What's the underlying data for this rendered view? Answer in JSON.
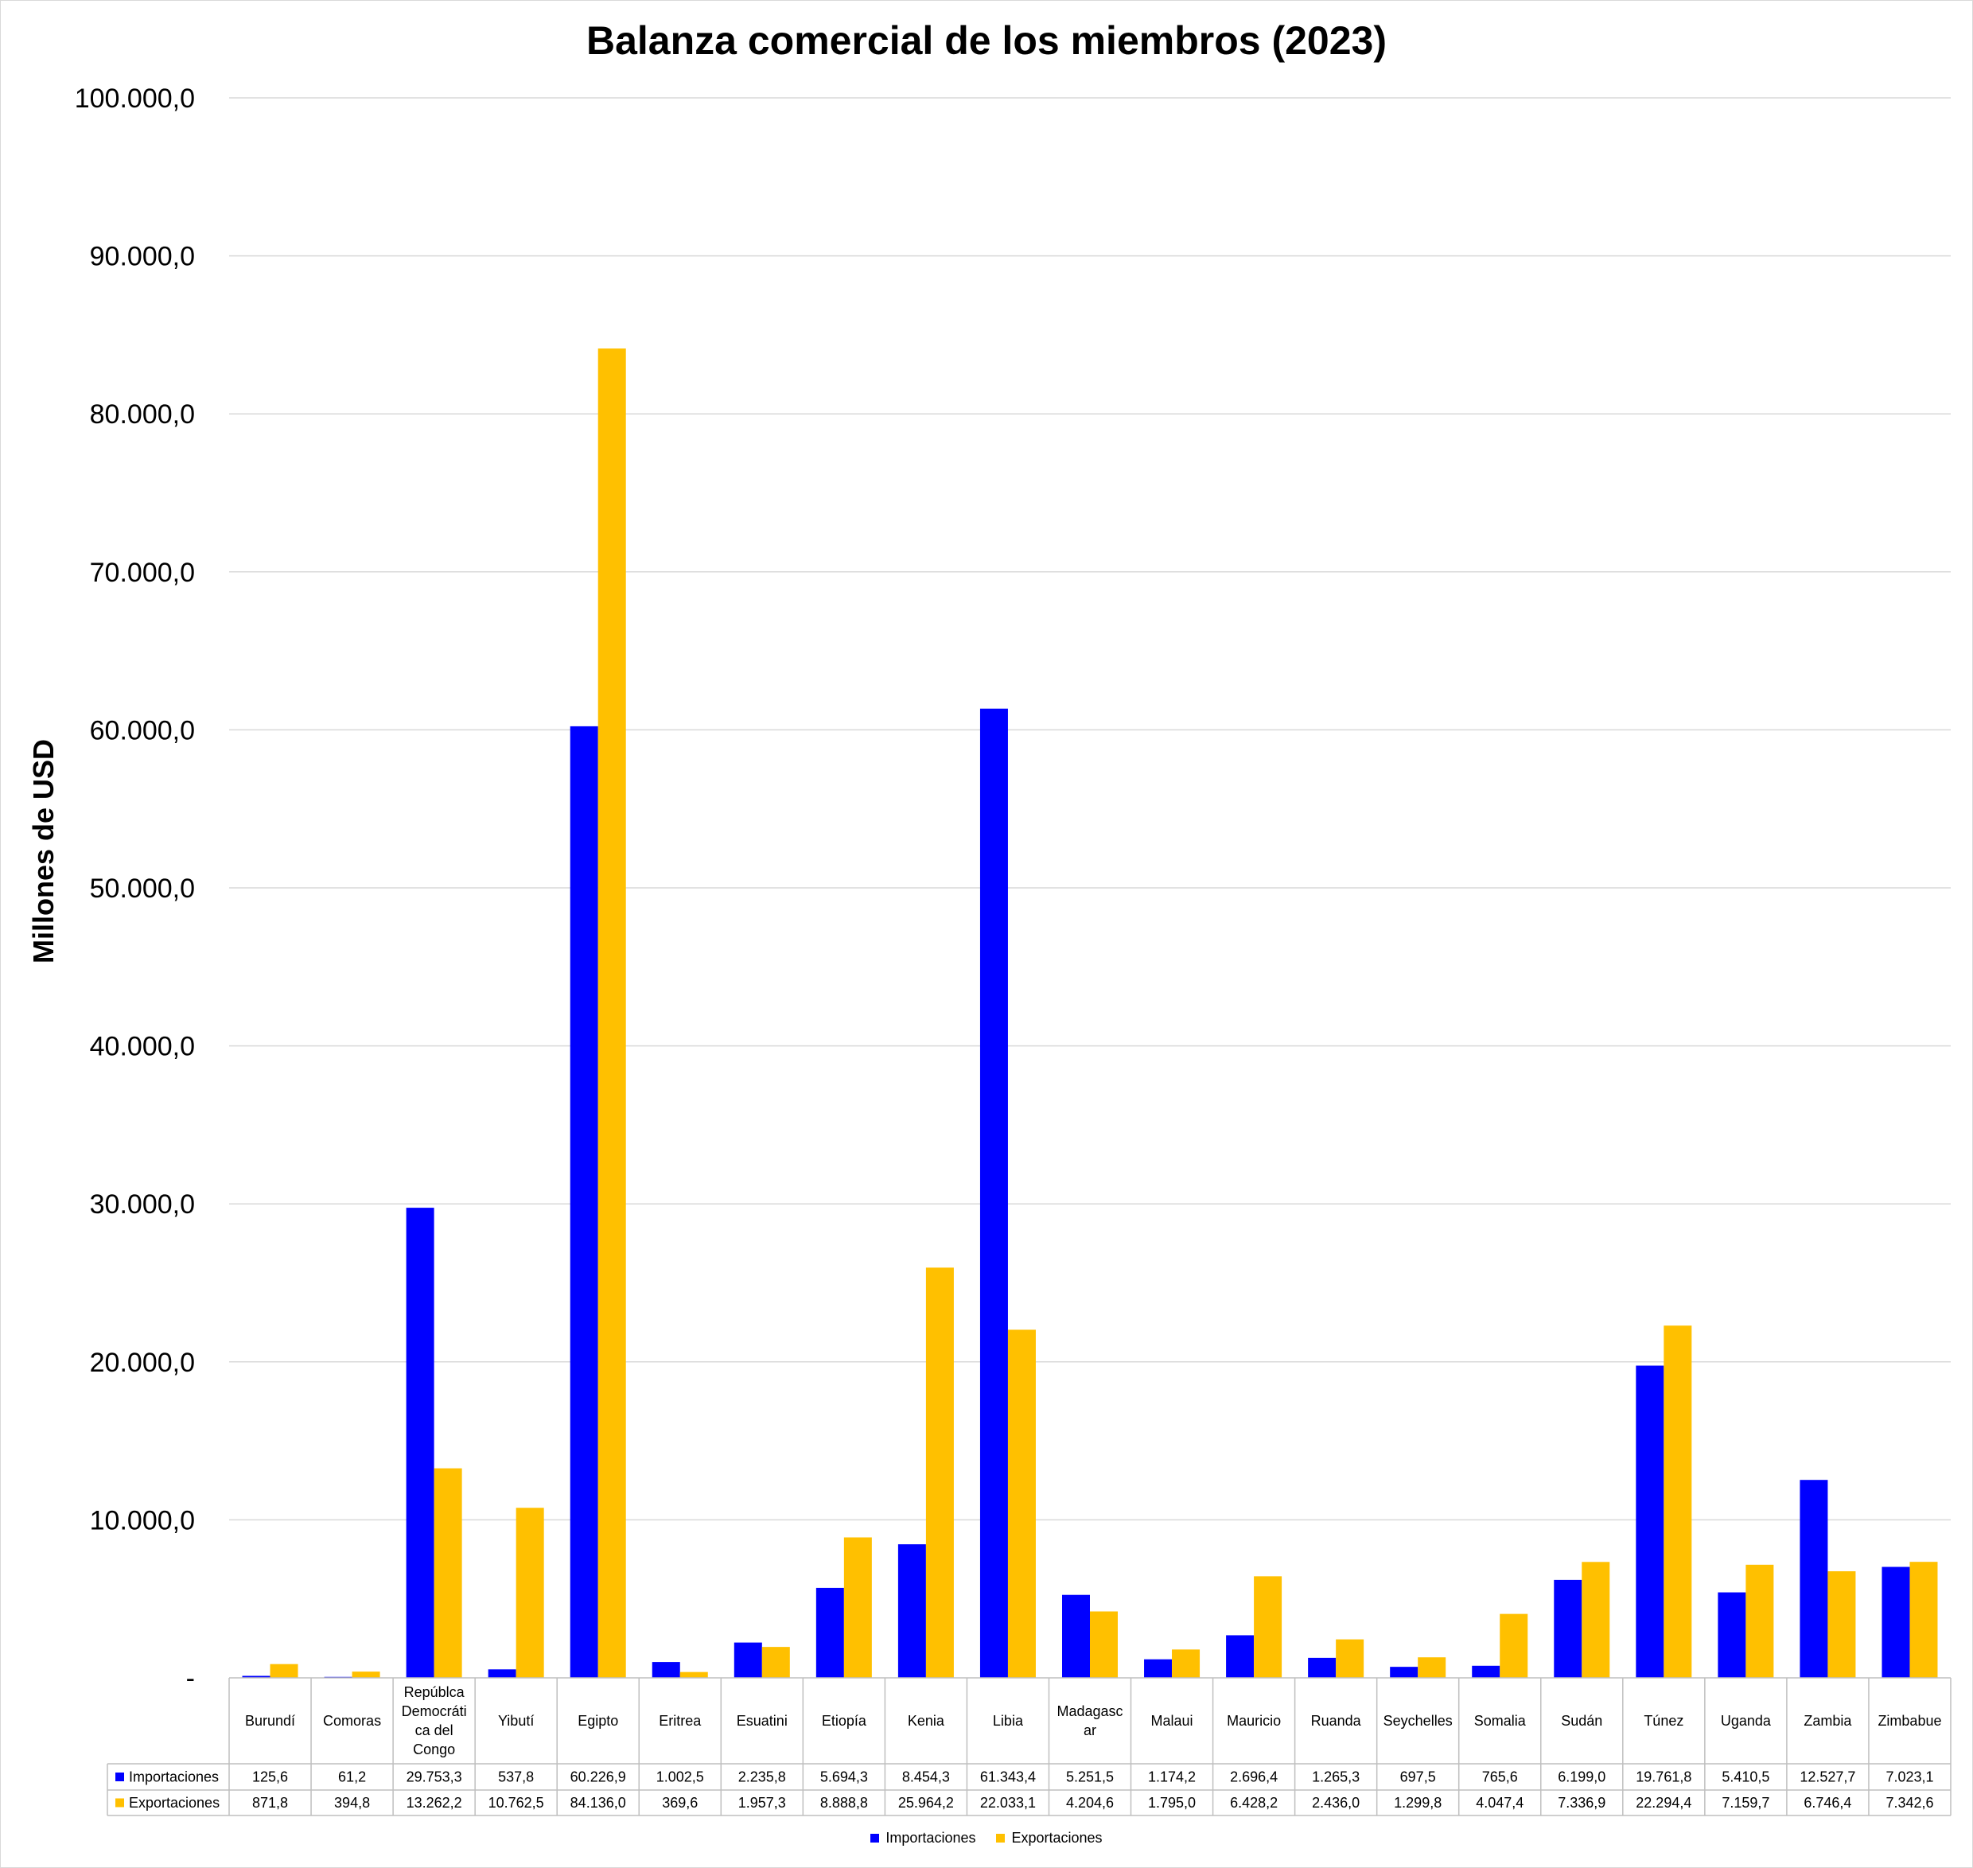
{
  "colors": {
    "imports": "#0000FF",
    "exports": "#FFC000",
    "grid": "#d9d9d9",
    "table_border": "#bfbfbf"
  },
  "chart_data": {
    "type": "bar",
    "title": "Balanza comercial de los miembros (2023)",
    "ylabel": "Millones de USD",
    "xlabel": "",
    "ylim": [
      0,
      100000
    ],
    "yticks": [
      {
        "value": 0,
        "label": "-"
      },
      {
        "value": 10000,
        "label": "10.000,0"
      },
      {
        "value": 20000,
        "label": "20.000,0"
      },
      {
        "value": 30000,
        "label": "30.000,0"
      },
      {
        "value": 40000,
        "label": "40.000,0"
      },
      {
        "value": 50000,
        "label": "50.000,0"
      },
      {
        "value": 60000,
        "label": "60.000,0"
      },
      {
        "value": 70000,
        "label": "70.000,0"
      },
      {
        "value": 80000,
        "label": "80.000,0"
      },
      {
        "value": 90000,
        "label": "90.000,0"
      },
      {
        "value": 100000,
        "label": "100.000,0"
      }
    ],
    "grid": true,
    "legend_position": "bottom",
    "categories": [
      [
        "Burundí"
      ],
      [
        "Comoras"
      ],
      [
        "Repúblca",
        "Democráti",
        "ca del",
        "Congo"
      ],
      [
        "Yibutí"
      ],
      [
        "Egipto"
      ],
      [
        "Eritrea"
      ],
      [
        "Esuatini"
      ],
      [
        "Etiopía"
      ],
      [
        "Kenia"
      ],
      [
        "Libia"
      ],
      [
        "Madagasc",
        "ar"
      ],
      [
        "Malaui"
      ],
      [
        "Mauricio"
      ],
      [
        "Ruanda"
      ],
      [
        "Seychelles"
      ],
      [
        "Somalia"
      ],
      [
        "Sudán"
      ],
      [
        "Túnez"
      ],
      [
        "Uganda"
      ],
      [
        "Zambia"
      ],
      [
        "Zimbabue"
      ]
    ],
    "series": [
      {
        "name": "Importaciones",
        "values": [
          125.6,
          61.2,
          29753.3,
          537.8,
          60226.9,
          1002.5,
          2235.8,
          5694.3,
          8454.3,
          61343.4,
          5251.5,
          1174.2,
          2696.4,
          1265.3,
          697.5,
          765.6,
          6199.0,
          19761.8,
          5410.5,
          12527.7,
          7023.1
        ],
        "labels": [
          "125,6",
          "61,2",
          "29.753,3",
          "537,8",
          "60.226,9",
          "1.002,5",
          "2.235,8",
          "5.694,3",
          "8.454,3",
          "61.343,4",
          "5.251,5",
          "1.174,2",
          "2.696,4",
          "1.265,3",
          "697,5",
          "765,6",
          "6.199,0",
          "19.761,8",
          "5.410,5",
          "12.527,7",
          "7.023,1"
        ]
      },
      {
        "name": "Exportaciones",
        "values": [
          871.8,
          394.8,
          13262.2,
          10762.5,
          84136.0,
          369.6,
          1957.3,
          8888.8,
          25964.2,
          22033.1,
          4204.6,
          1795.0,
          6428.2,
          2436.0,
          1299.8,
          4047.4,
          7336.9,
          22294.4,
          7159.7,
          6746.4,
          7342.6
        ],
        "labels": [
          "871,8",
          "394,8",
          "13.262,2",
          "10.762,5",
          "84.136,0",
          "369,6",
          "1.957,3",
          "8.888,8",
          "25.964,2",
          "22.033,1",
          "4.204,6",
          "1.795,0",
          "6.428,2",
          "2.436,0",
          "1.299,8",
          "4.047,4",
          "7.336,9",
          "22.294,4",
          "7.159,7",
          "6.746,4",
          "7.342,6"
        ]
      }
    ]
  }
}
